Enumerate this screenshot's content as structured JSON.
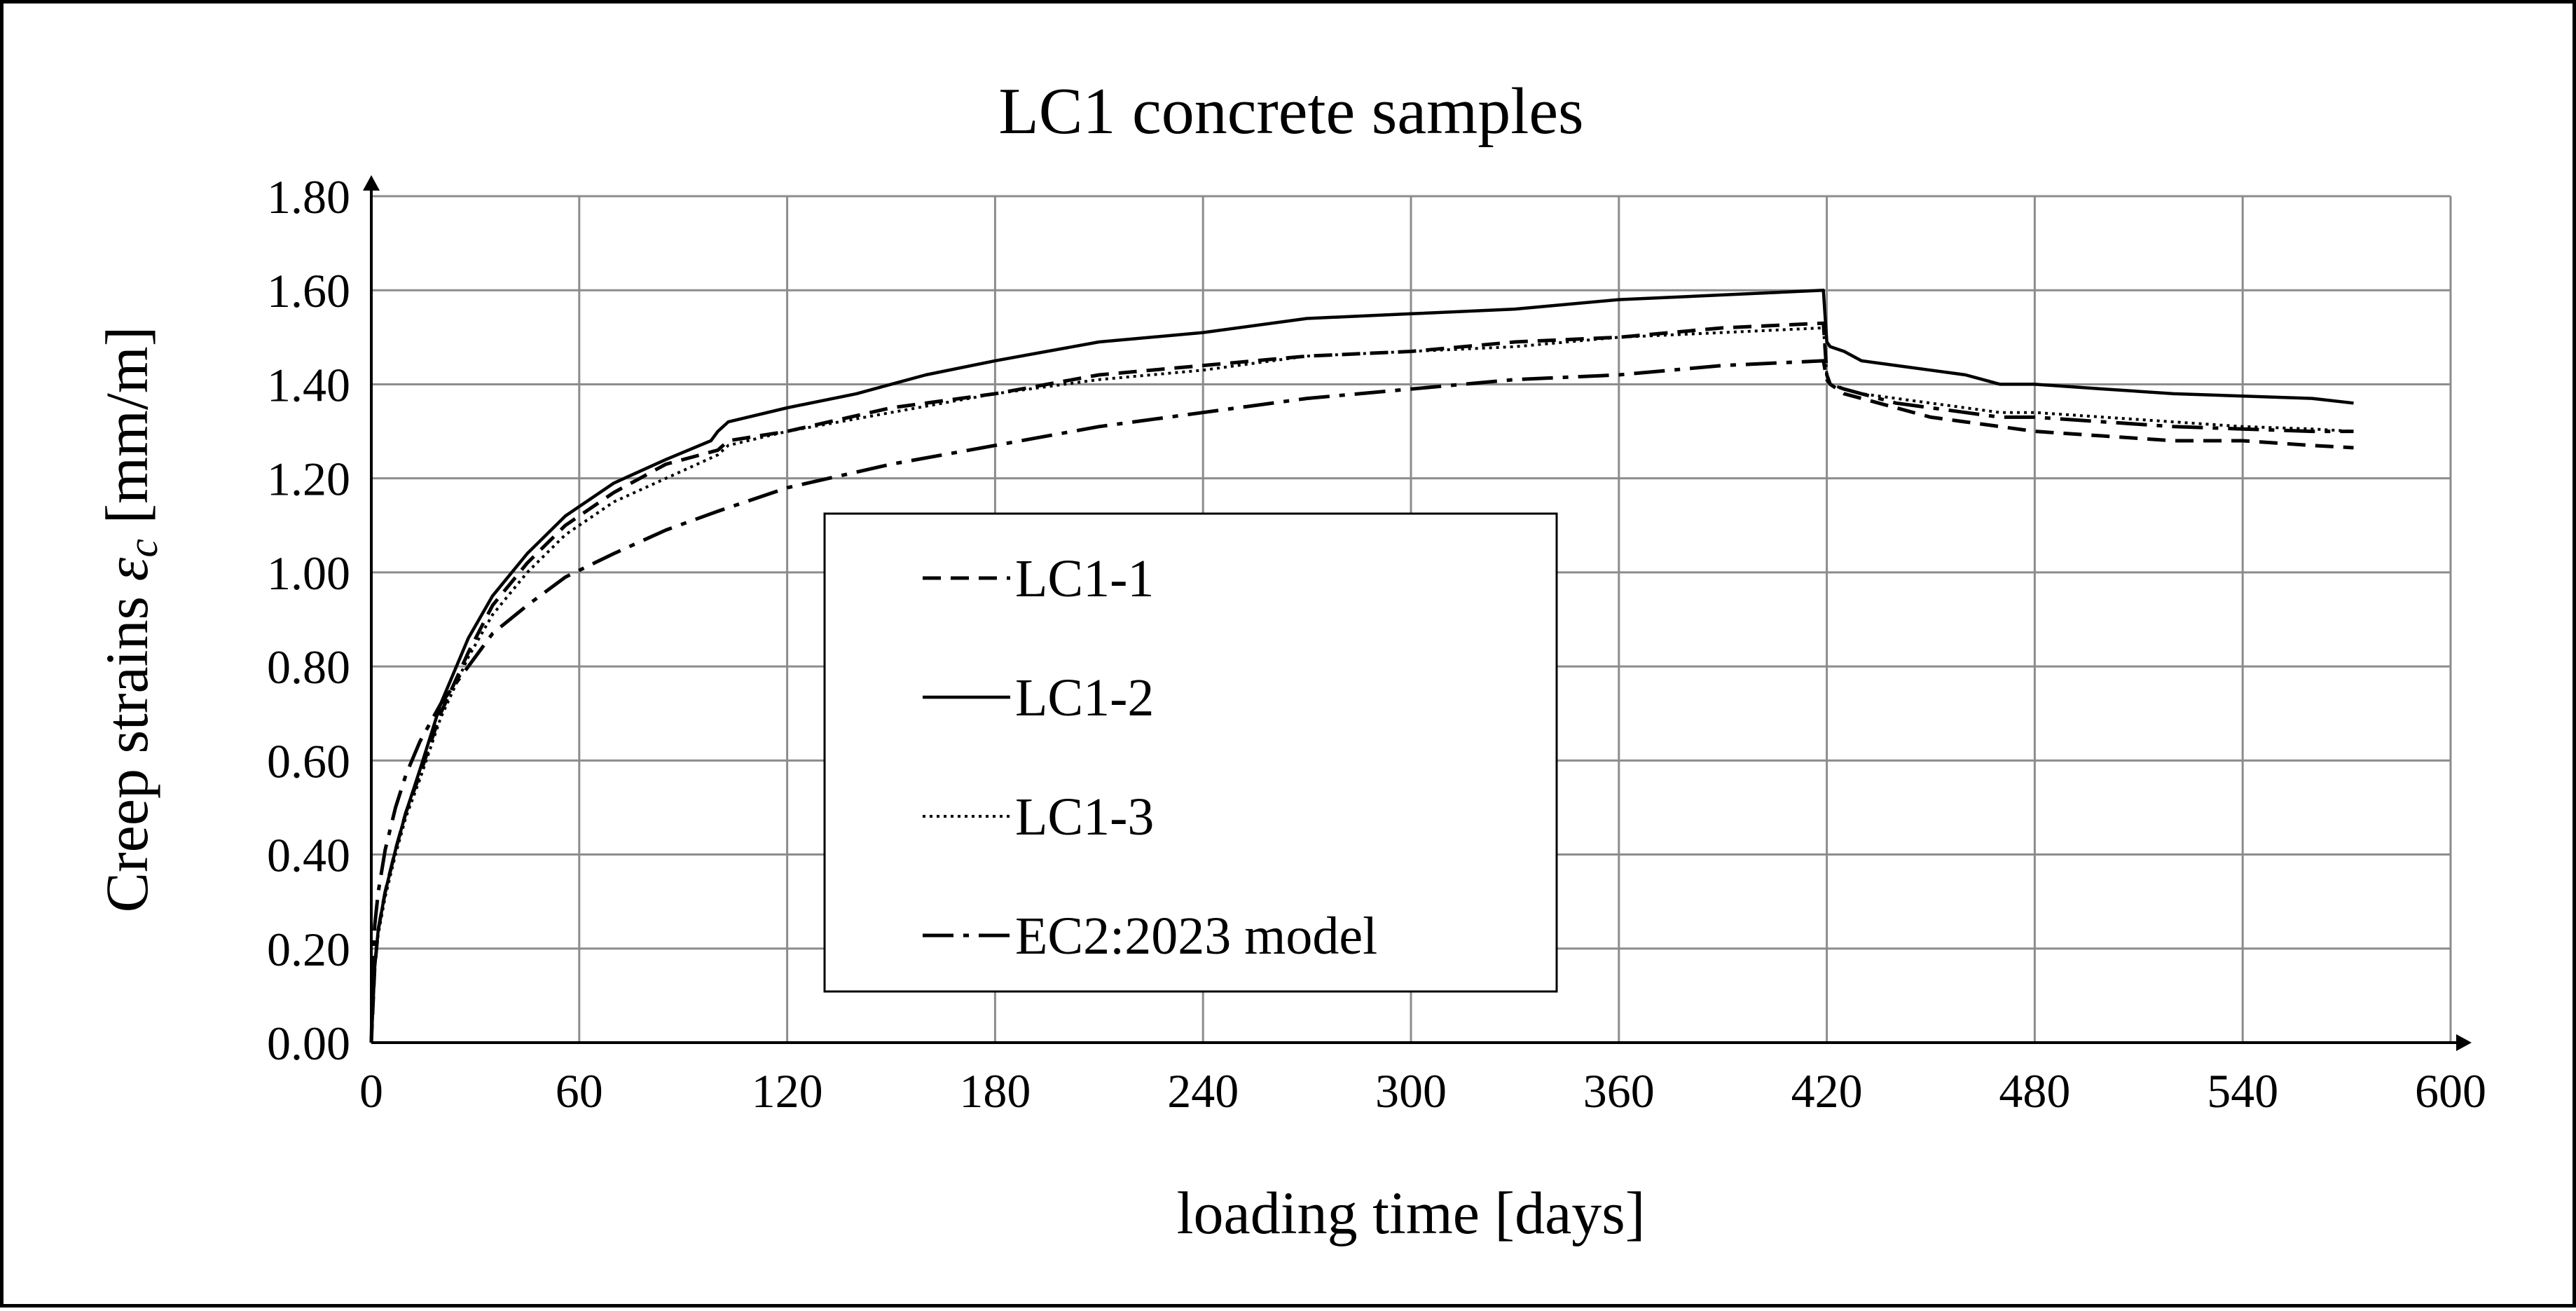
{
  "chart_data": {
    "type": "line",
    "title": "LC1 concrete samples",
    "xlabel": "loading time [days]",
    "ylabel_text": "Creep strains ",
    "ylabel_symbol": "ε",
    "ylabel_subscript": "c",
    "ylabel_unit": " [mm/m]",
    "xlim": [
      0,
      600
    ],
    "ylim": [
      0,
      1.8
    ],
    "x_ticks": [
      0,
      60,
      120,
      180,
      240,
      300,
      360,
      420,
      480,
      540,
      600
    ],
    "y_ticks": [
      0.0,
      0.2,
      0.4,
      0.6,
      0.8,
      1.0,
      1.2,
      1.4,
      1.6,
      1.8
    ],
    "x_tick_labels": [
      "0",
      "60",
      "120",
      "180",
      "240",
      "300",
      "360",
      "420",
      "480",
      "540",
      "600"
    ],
    "y_tick_labels": [
      "0.00",
      "0.20",
      "0.40",
      "0.60",
      "0.80",
      "1.00",
      "1.20",
      "1.40",
      "1.60",
      "1.80"
    ],
    "grid": true,
    "legend_position": "center",
    "series": [
      {
        "name": "LC1-1",
        "style": "dashed",
        "x": [
          0,
          1,
          2,
          4,
          7,
          10,
          14,
          20,
          28,
          35,
          45,
          56,
          70,
          85,
          100,
          103,
          120,
          150,
          180,
          210,
          240,
          270,
          300,
          330,
          360,
          390,
          419,
          420,
          421,
          425,
          430,
          440,
          450,
          460,
          470,
          480,
          500,
          520,
          540,
          560,
          572
        ],
        "y": [
          0.0,
          0.16,
          0.24,
          0.32,
          0.41,
          0.49,
          0.57,
          0.7,
          0.83,
          0.93,
          1.02,
          1.1,
          1.17,
          1.23,
          1.26,
          1.28,
          1.3,
          1.35,
          1.38,
          1.42,
          1.44,
          1.46,
          1.47,
          1.49,
          1.5,
          1.52,
          1.53,
          1.42,
          1.4,
          1.38,
          1.37,
          1.35,
          1.33,
          1.32,
          1.31,
          1.3,
          1.29,
          1.28,
          1.28,
          1.27,
          1.265
        ]
      },
      {
        "name": "LC1-2",
        "style": "solid",
        "x": [
          0,
          1,
          2,
          4,
          7,
          10,
          14,
          20,
          28,
          35,
          45,
          56,
          70,
          85,
          98,
          100,
          103,
          120,
          140,
          160,
          180,
          210,
          240,
          270,
          300,
          330,
          360,
          390,
          419,
          420,
          421,
          425,
          430,
          440,
          450,
          460,
          465,
          470,
          480,
          500,
          520,
          540,
          560,
          572
        ],
        "y": [
          0.0,
          0.16,
          0.24,
          0.32,
          0.41,
          0.49,
          0.58,
          0.72,
          0.86,
          0.95,
          1.04,
          1.12,
          1.19,
          1.24,
          1.28,
          1.3,
          1.32,
          1.35,
          1.38,
          1.42,
          1.45,
          1.49,
          1.51,
          1.54,
          1.55,
          1.56,
          1.58,
          1.59,
          1.6,
          1.49,
          1.48,
          1.47,
          1.45,
          1.44,
          1.43,
          1.42,
          1.41,
          1.4,
          1.4,
          1.39,
          1.38,
          1.375,
          1.37,
          1.36
        ]
      },
      {
        "name": "LC1-3",
        "style": "dotted",
        "x": [
          0,
          1,
          2,
          4,
          7,
          10,
          14,
          20,
          28,
          35,
          45,
          56,
          70,
          85,
          100,
          103,
          120,
          150,
          180,
          210,
          240,
          270,
          300,
          330,
          360,
          390,
          419,
          420,
          421,
          425,
          430,
          440,
          450,
          460,
          470,
          480,
          500,
          520,
          540,
          560,
          572
        ],
        "y": [
          0.0,
          0.16,
          0.23,
          0.31,
          0.4,
          0.48,
          0.56,
          0.69,
          0.82,
          0.91,
          1.0,
          1.08,
          1.15,
          1.2,
          1.25,
          1.27,
          1.3,
          1.34,
          1.38,
          1.41,
          1.43,
          1.46,
          1.47,
          1.48,
          1.5,
          1.51,
          1.52,
          1.42,
          1.4,
          1.39,
          1.38,
          1.37,
          1.36,
          1.35,
          1.34,
          1.34,
          1.33,
          1.32,
          1.31,
          1.305,
          1.3
        ]
      },
      {
        "name": "EC2:2023 model",
        "style": "dashdot",
        "x": [
          0,
          0.5,
          1,
          2,
          4,
          7,
          10,
          14,
          20,
          28,
          35,
          45,
          56,
          70,
          85,
          100,
          120,
          150,
          180,
          210,
          240,
          270,
          300,
          330,
          360,
          390,
          419,
          420,
          421,
          425,
          430,
          440,
          450,
          460,
          470,
          480,
          500,
          520,
          540,
          560,
          572
        ],
        "y": [
          0.0,
          0.18,
          0.25,
          0.32,
          0.41,
          0.5,
          0.57,
          0.64,
          0.72,
          0.8,
          0.87,
          0.93,
          0.99,
          1.04,
          1.09,
          1.13,
          1.18,
          1.23,
          1.27,
          1.31,
          1.34,
          1.37,
          1.39,
          1.41,
          1.42,
          1.44,
          1.45,
          1.41,
          1.4,
          1.39,
          1.38,
          1.36,
          1.35,
          1.34,
          1.33,
          1.33,
          1.32,
          1.31,
          1.305,
          1.3,
          1.3
        ]
      }
    ]
  }
}
